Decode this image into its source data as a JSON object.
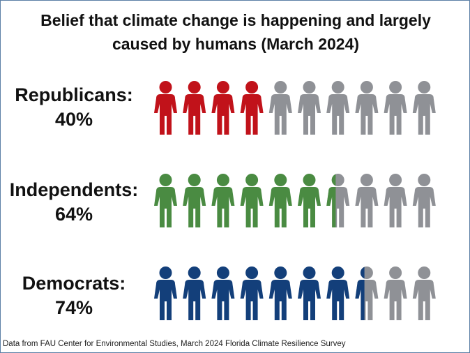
{
  "title_line1": "Belief that climate change is happening and largely",
  "title_line2": "caused by humans (March 2024)",
  "footer": "Data from FAU Center for Environmental Studies, March 2024 Florida Climate Resilience Survey",
  "colors": {
    "republicans": "#c1121a",
    "independents": "#4a8b42",
    "democrats": "#133f7a",
    "remainder": "#8f9196",
    "frame": "#5b7fa6"
  },
  "icon_name": "person-icon",
  "chart_data": {
    "type": "pictograph",
    "icons_per_row": 10,
    "series": [
      {
        "name": "Republicans:",
        "value_label": "40%",
        "value": 40
      },
      {
        "name": "Independents:",
        "value_label": "64%",
        "value": 64
      },
      {
        "name": "Democrats:",
        "value_label": "74%",
        "value": 74
      }
    ]
  }
}
